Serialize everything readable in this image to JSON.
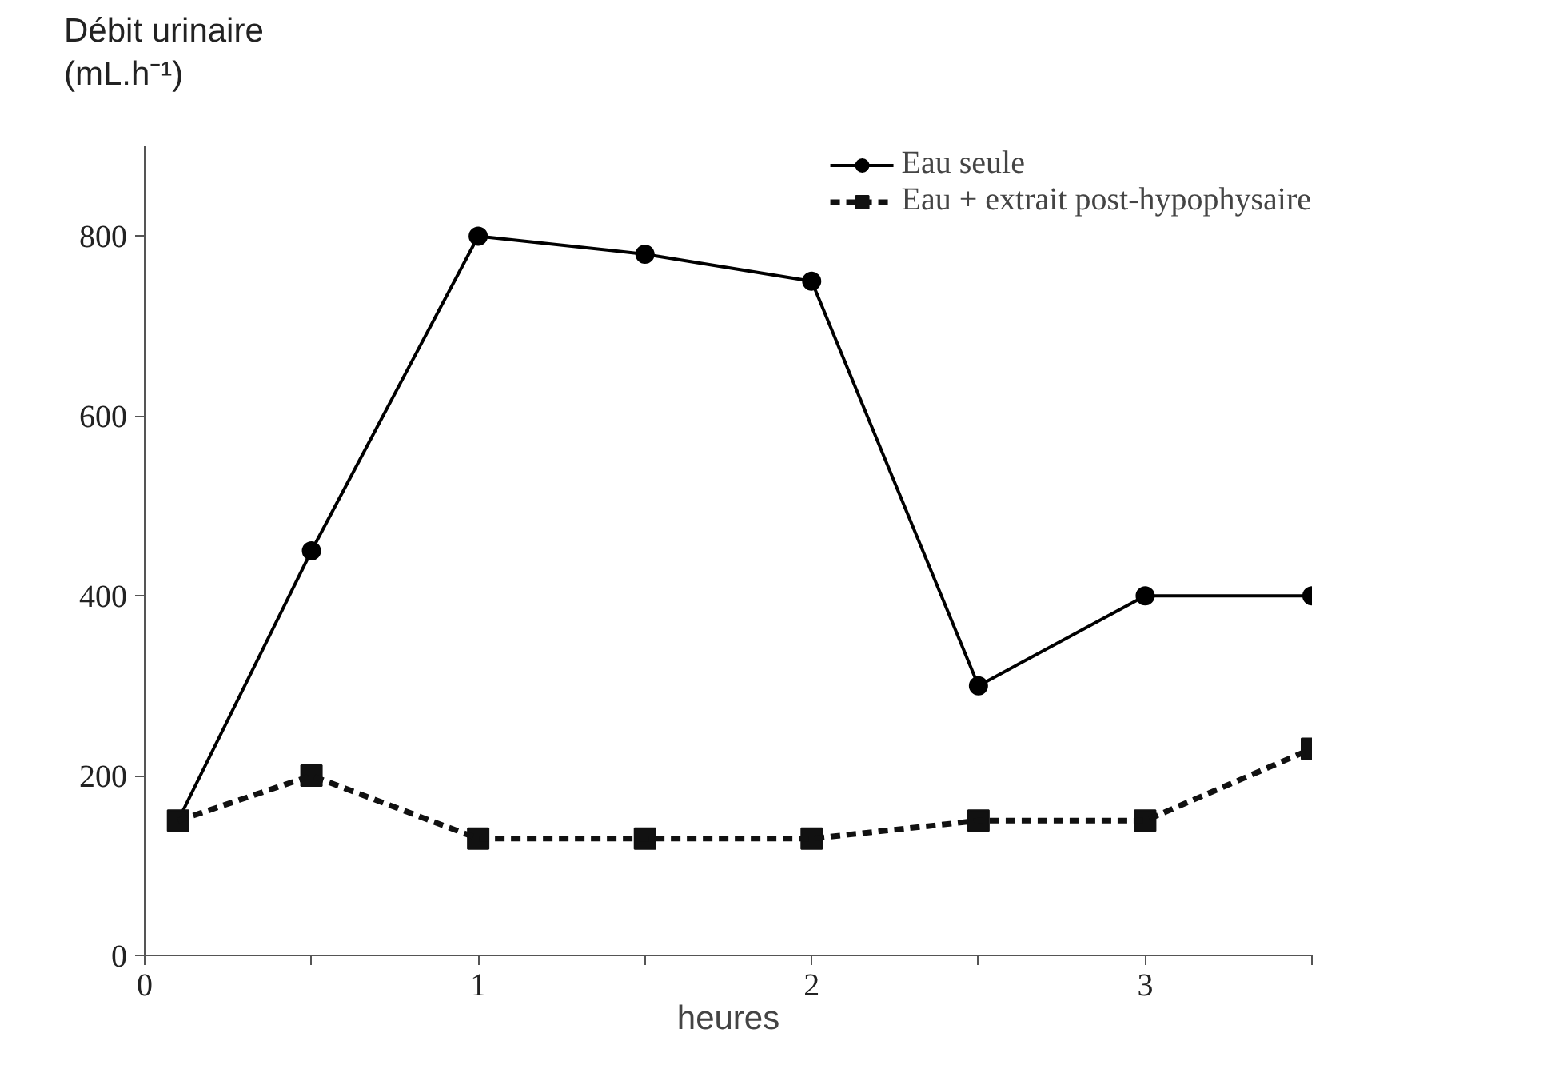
{
  "chart_data": {
    "type": "line",
    "xlabel": "heures",
    "ylabel": "Débit urinaire\n(mL.h⁻¹)",
    "x": [
      0.1,
      0.5,
      1,
      1.5,
      2,
      2.5,
      3,
      3.5
    ],
    "series": [
      {
        "name": "Eau seule",
        "color": "#000000",
        "marker": "circle",
        "line_style": "solid",
        "values": [
          150,
          450,
          800,
          780,
          750,
          300,
          400,
          400
        ]
      },
      {
        "name": "Eau + extrait post-hypophysaire",
        "color": "#111111",
        "marker": "square",
        "line_style": "dashed",
        "values": [
          150,
          200,
          130,
          130,
          130,
          150,
          150,
          230
        ]
      }
    ],
    "xlim": [
      0,
      3.5
    ],
    "ylim": [
      0,
      900
    ],
    "xticks": [
      0,
      {
        "value": 0.5,
        "label": null
      },
      1,
      {
        "value": 1.5,
        "label": null
      },
      2,
      {
        "value": 2.5,
        "label": null
      },
      3,
      {
        "value": 3.5,
        "label": null
      }
    ],
    "yticks": [
      0,
      200,
      400,
      600,
      800
    ],
    "grid": false,
    "legend": "top right"
  }
}
